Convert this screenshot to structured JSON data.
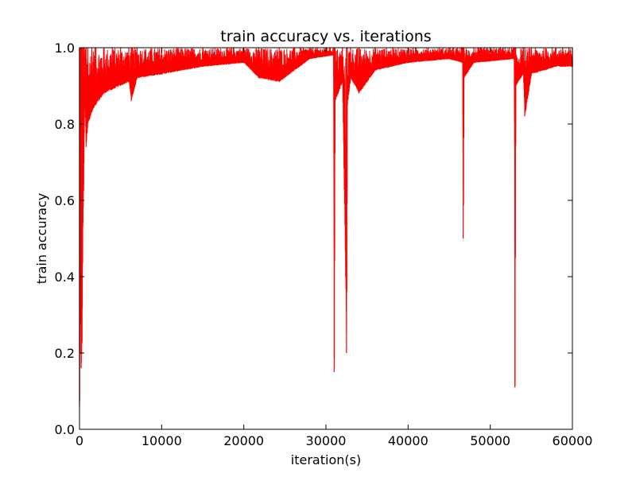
{
  "chart_data": {
    "type": "line",
    "title": "train accuracy vs. iterations",
    "xlabel": "iteration(s)",
    "ylabel": "train accuracy",
    "xlim": [
      0,
      60000
    ],
    "ylim": [
      0.0,
      1.0
    ],
    "grid": false,
    "line_color": "#ff0000",
    "xticks": [
      0,
      10000,
      20000,
      30000,
      40000,
      50000,
      60000
    ],
    "xtick_labels": [
      "0",
      "10000",
      "20000",
      "30000",
      "40000",
      "50000",
      "60000"
    ],
    "yticks": [
      0.0,
      0.2,
      0.4,
      0.6,
      0.8,
      1.0
    ],
    "ytick_labels": [
      "0.0",
      "0.2",
      "0.4",
      "0.6",
      "0.8",
      "1.0"
    ],
    "series": [
      {
        "points": [
          [
            0,
            0.06
          ],
          [
            100,
            0.3
          ],
          [
            200,
            0.16
          ],
          [
            300,
            0.23
          ],
          [
            400,
            0.53
          ],
          [
            500,
            0.64
          ],
          [
            600,
            0.86
          ],
          [
            800,
            0.74
          ],
          [
            1000,
            0.8
          ],
          [
            1500,
            0.83
          ],
          [
            2000,
            0.85
          ],
          [
            3000,
            0.88
          ],
          [
            4000,
            0.89
          ],
          [
            5000,
            0.9
          ],
          [
            6000,
            0.91
          ],
          [
            6300,
            0.86
          ],
          [
            7000,
            0.92
          ],
          [
            10000,
            0.93
          ],
          [
            15000,
            0.95
          ],
          [
            20000,
            0.96
          ],
          [
            21800,
            0.92
          ],
          [
            24300,
            0.91
          ],
          [
            28000,
            0.97
          ],
          [
            30900,
            0.98
          ],
          [
            31000,
            0.15
          ],
          [
            31100,
            0.86
          ],
          [
            32000,
            0.91
          ],
          [
            32500,
            0.2
          ],
          [
            32600,
            0.85
          ],
          [
            33000,
            0.92
          ],
          [
            34000,
            0.88
          ],
          [
            36000,
            0.94
          ],
          [
            40000,
            0.96
          ],
          [
            45000,
            0.97
          ],
          [
            46600,
            0.96
          ],
          [
            46700,
            0.5
          ],
          [
            46800,
            0.92
          ],
          [
            48000,
            0.96
          ],
          [
            52900,
            0.97
          ],
          [
            53000,
            0.11
          ],
          [
            53100,
            0.9
          ],
          [
            54000,
            0.93
          ],
          [
            54200,
            0.82
          ],
          [
            55000,
            0.93
          ],
          [
            58000,
            0.95
          ],
          [
            60000,
            0.95
          ]
        ]
      }
    ],
    "upper_band": 1.0
  }
}
